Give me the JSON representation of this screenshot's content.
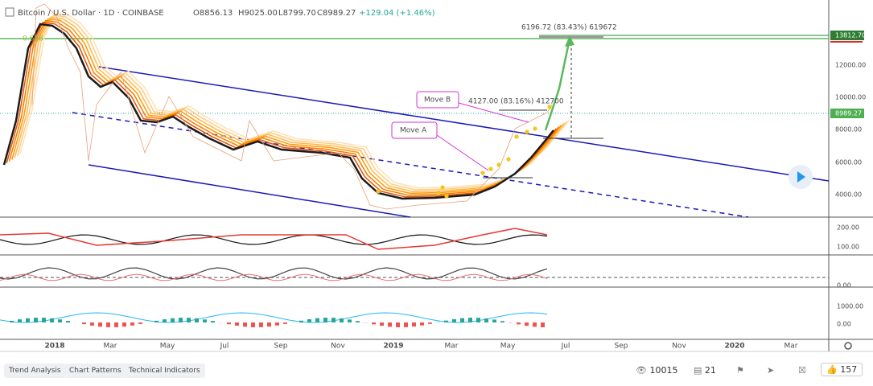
{
  "header": {
    "symbol": "Bitcoin / U.S. Dollar · 1D · COINBASE",
    "open": "O8856.13",
    "high": "H9025.00",
    "low": "L8799.70",
    "close": "C8989.27",
    "change": "+129.04 (+1.46%)"
  },
  "annotations": {
    "fib_level": "0.618",
    "projection": "6196.72 (83.43%) 619672",
    "move_b_measure": "4127.00 (83.16%) 412700",
    "callouts": [
      "Move B",
      "Move A"
    ]
  },
  "price_axis": [
    "13812.70",
    "12000.00",
    "10000.00",
    "8989.27",
    "8000.00",
    "6000.00",
    "4000.00"
  ],
  "indicator_axes": [
    [
      "200.00",
      "100.00"
    ],
    [
      "0.00"
    ],
    [
      "1000.00",
      "0.00"
    ]
  ],
  "time_axis": [
    "2018",
    "Mar",
    "May",
    "Jul",
    "Sep",
    "Nov",
    "2019",
    "Mar",
    "May",
    "Jul",
    "Sep",
    "Nov",
    "2020",
    "Mar"
  ],
  "footer": {
    "tags": [
      "Trend Analysis",
      "Chart Patterns",
      "Technical Indicators"
    ],
    "views": "10015",
    "comments": "21",
    "likes": "157"
  }
}
